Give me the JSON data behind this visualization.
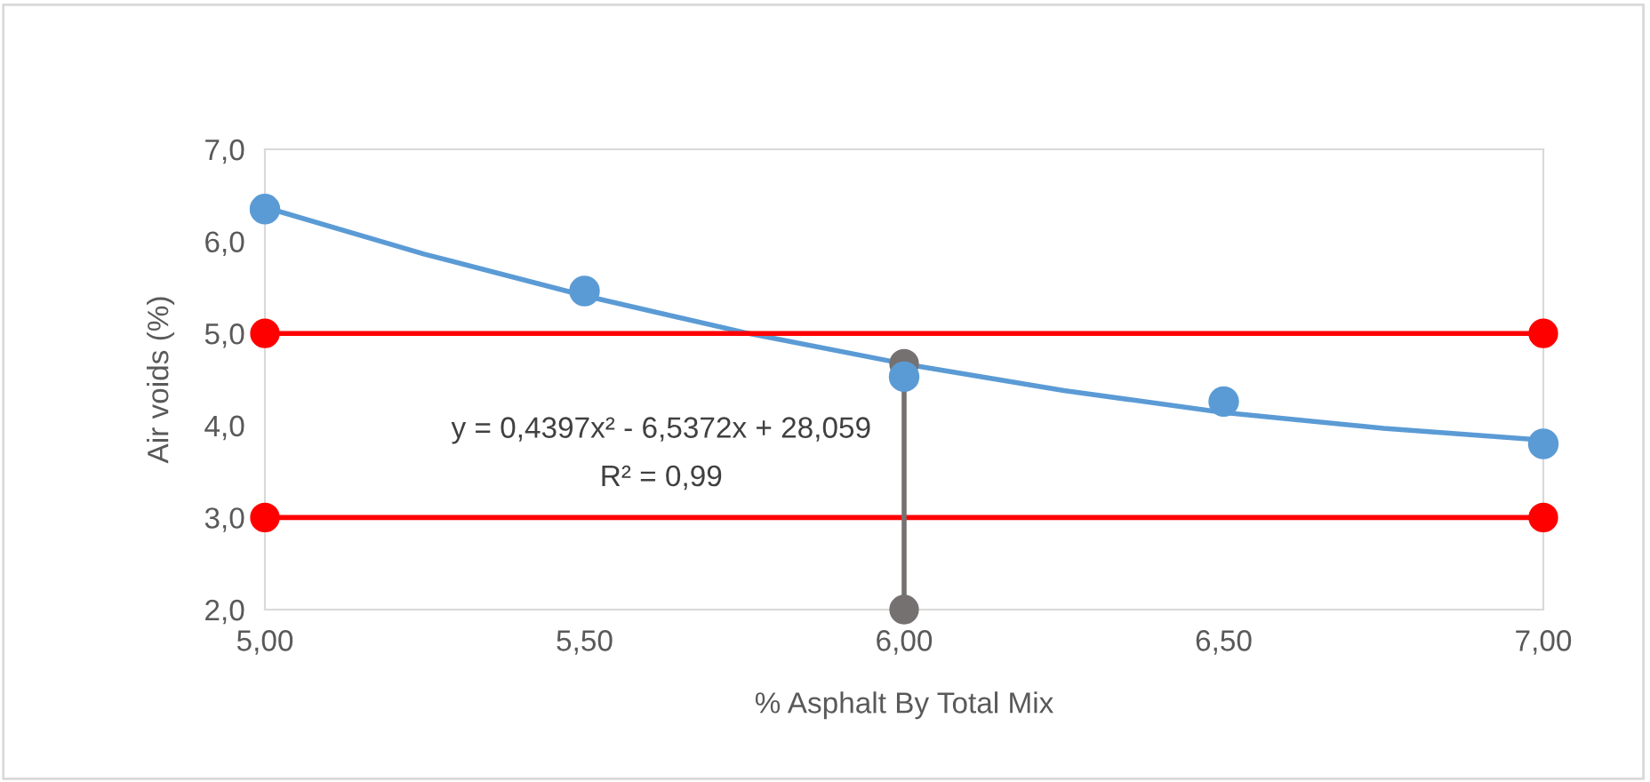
{
  "chart_data": {
    "type": "scatter",
    "xlabel": "% Asphalt By Total Mix",
    "ylabel": "Air voids (%)",
    "xlim": [
      5,
      7
    ],
    "ylim": [
      2,
      7
    ],
    "xticks": [
      {
        "value": 5,
        "label": "5,00"
      },
      {
        "value": 5.5,
        "label": "5,50"
      },
      {
        "value": 6,
        "label": "6,00"
      },
      {
        "value": 6.5,
        "label": "6,50"
      },
      {
        "value": 7,
        "label": "7,00"
      }
    ],
    "yticks": [
      {
        "value": 2,
        "label": "2,0"
      },
      {
        "value": 3,
        "label": "3,0"
      },
      {
        "value": 4,
        "label": "4,0"
      },
      {
        "value": 5,
        "label": "5,0"
      },
      {
        "value": 6,
        "label": "6,0"
      },
      {
        "value": 7,
        "label": "7,0"
      }
    ],
    "grid": false,
    "series": [
      {
        "type": "line",
        "color": "#5b9bd5",
        "marker": "none",
        "line_style": "solid",
        "x": [
          5,
          5.25,
          5.5,
          5.75,
          6,
          6.25,
          6.5,
          6.75,
          7
        ],
        "values": [
          6.37,
          5.86,
          5.41,
          5.01,
          4.67,
          4.38,
          4.14,
          3.97,
          3.84
        ]
      },
      {
        "type": "line",
        "color": "#ff0000",
        "marker": "circle",
        "line_style": "solid",
        "x": [
          5,
          7
        ],
        "values": [
          5.0,
          5.0
        ]
      },
      {
        "type": "line",
        "color": "#ff0000",
        "marker": "circle",
        "line_style": "solid",
        "x": [
          5,
          7
        ],
        "values": [
          3.0,
          3.0
        ]
      },
      {
        "type": "line",
        "color": "#767171",
        "marker": "circle",
        "line_style": "solid",
        "x": [
          6,
          6
        ],
        "values": [
          2.0,
          4.67
        ]
      },
      {
        "color": "#5b9bd5",
        "marker": "circle",
        "x": [
          5,
          5.5,
          6,
          6.5,
          7
        ],
        "values": [
          6.35,
          5.46,
          4.53,
          4.26,
          3.8
        ]
      }
    ],
    "annotations": [
      "y = 0,4397x² - 6,5372x + 28,059",
      "R² = 0,99"
    ]
  }
}
